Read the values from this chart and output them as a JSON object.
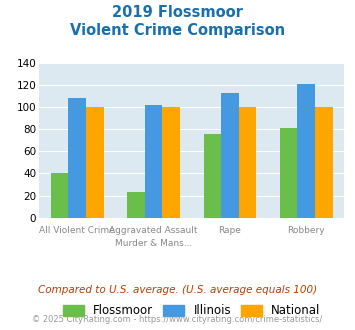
{
  "title_line1": "2019 Flossmoor",
  "title_line2": "Violent Crime Comparison",
  "cat_labels_top": [
    "",
    "Aggravated Assault",
    "",
    ""
  ],
  "cat_labels_bot": [
    "All Violent Crime",
    "Murder & Mans...",
    "Rape",
    "Robbery"
  ],
  "series": {
    "Flossmoor": [
      40,
      23,
      76,
      81
    ],
    "Illinois": [
      108,
      102,
      113,
      121
    ],
    "National": [
      100,
      100,
      100,
      100
    ]
  },
  "colors": {
    "Flossmoor": "#6abf4b",
    "Illinois": "#4499e0",
    "National": "#ffa500"
  },
  "ylim": [
    0,
    140
  ],
  "yticks": [
    0,
    20,
    40,
    60,
    80,
    100,
    120,
    140
  ],
  "title_color": "#1a6faf",
  "plot_bg": "#dce9f0",
  "footnote1": "Compared to U.S. average. (U.S. average equals 100)",
  "footnote2": "© 2025 CityRating.com - https://www.cityrating.com/crime-statistics/",
  "footnote1_color": "#b84000",
  "footnote2_color": "#999999"
}
